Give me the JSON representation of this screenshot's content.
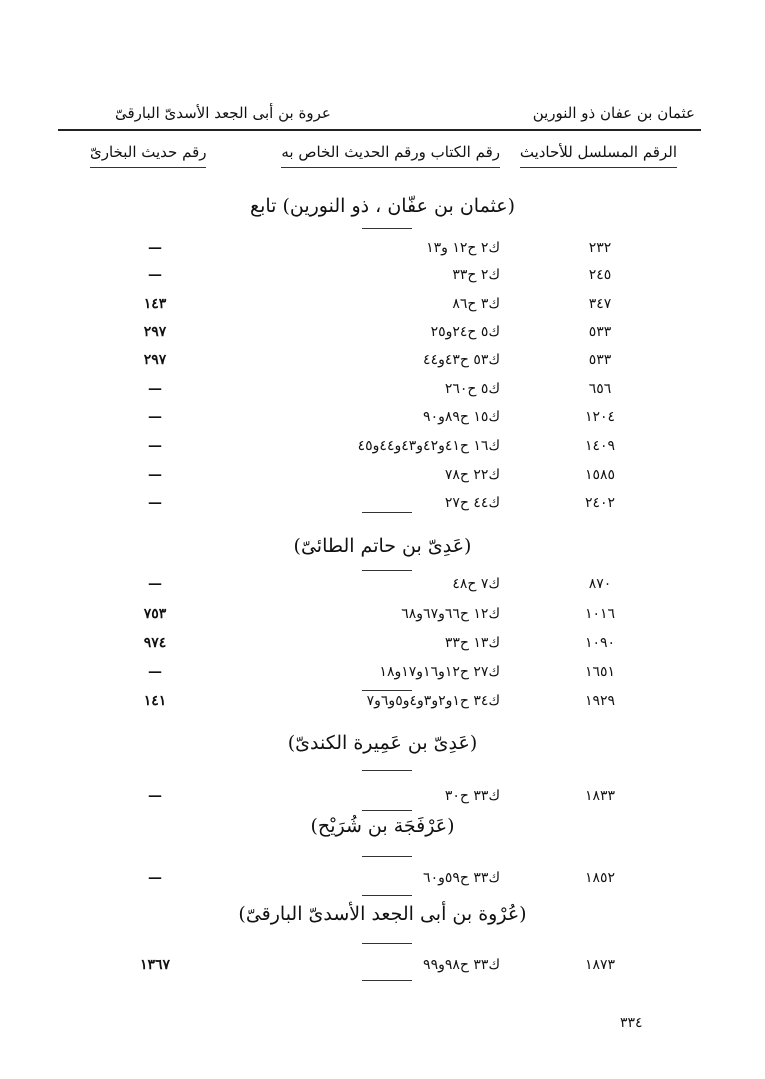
{
  "header": {
    "right": "عثمان بن عفان ذو النورين",
    "left": "عروة بن أبى الجعد الأسدىّ البارقىّ"
  },
  "columns": {
    "serial": "الرقم المسلسل للأحاديث",
    "book": "رقم الكتاب ورقم الحديث الخاص به",
    "bukhari": "رقم حديث البخارىّ"
  },
  "sections": [
    {
      "title": "(عثمان بن عفّان ، ذو النورين) تابع",
      "rows": [
        {
          "serial": "٢٣٢",
          "book": "ك٢ ح١٢ و١٣",
          "bukhari": "—"
        },
        {
          "serial": "٢٤٥",
          "book": "ك٢ ح٣٣",
          "bukhari": "—"
        },
        {
          "serial": "٣٤٧",
          "book": "ك٣ ح٨٦",
          "bukhari": "١٤٣"
        },
        {
          "serial": "٥٣٣",
          "book": "ك٥ ح٢٤و٢٥",
          "bukhari": "٢٩٧"
        },
        {
          "serial": "٥٣٣",
          "book": "ك٥٣ ح٤٣و٤٤",
          "bukhari": "٢٩٧"
        },
        {
          "serial": "٦٥٦",
          "book": "ك٥ ح٢٦٠",
          "bukhari": "—"
        },
        {
          "serial": "١٢٠٤",
          "book": "ك١٥ ح٨٩و٩٠",
          "bukhari": "—"
        },
        {
          "serial": "١٤٠٩",
          "book": "ك١٦ ح٤١و٤٢و٤٣و٤٤و٤٥",
          "bukhari": "—"
        },
        {
          "serial": "١٥٨٥",
          "book": "ك٢٢ ح٧٨",
          "bukhari": "—"
        },
        {
          "serial": "٢٤٠٢",
          "book": "ك٤٤ ح٢٧",
          "bukhari": "—"
        }
      ]
    },
    {
      "title": "(عَدِىّ بن حاتم الطائىّ)",
      "rows": [
        {
          "serial": "٨٧٠",
          "book": "ك٧ ح٤٨",
          "bukhari": "—"
        },
        {
          "serial": "١٠١٦",
          "book": "ك١٢ ح٦٦و٦٧و٦٨",
          "bukhari": "٧٥٣"
        },
        {
          "serial": "١٠٩٠",
          "book": "ك١٣ ح٣٣",
          "bukhari": "٩٧٤"
        },
        {
          "serial": "١٦٥١",
          "book": "ك٢٧ ح١٢و١٦و١٧و١٨",
          "bukhari": "—"
        },
        {
          "serial": "١٩٢٩",
          "book": "ك٣٤ ح١و٢و٣و٤و٥و٦و٧",
          "bukhari": "١٤١"
        }
      ]
    },
    {
      "title": "(عَدِىّ بن عَمِيرة الكندىّ)",
      "rows": [
        {
          "serial": "١٨٣٣",
          "book": "ك٣٣ ح٣٠",
          "bukhari": "—"
        }
      ]
    },
    {
      "title": "(عَرْفَجَة بن شُرَيْح)",
      "rows": [
        {
          "serial": "١٨٥٢",
          "book": "ك٣٣ ح٥٩و٦٠",
          "bukhari": "—"
        }
      ]
    },
    {
      "title": "(عُرْوة بن أبى الجعد الأسدىّ البارقىّ)",
      "rows": [
        {
          "serial": "١٨٧٣",
          "book": "ك٣٣ ح٩٨و٩٩",
          "bukhari": "١٣٦٧"
        }
      ]
    }
  ],
  "page_number": "٣٣٤"
}
